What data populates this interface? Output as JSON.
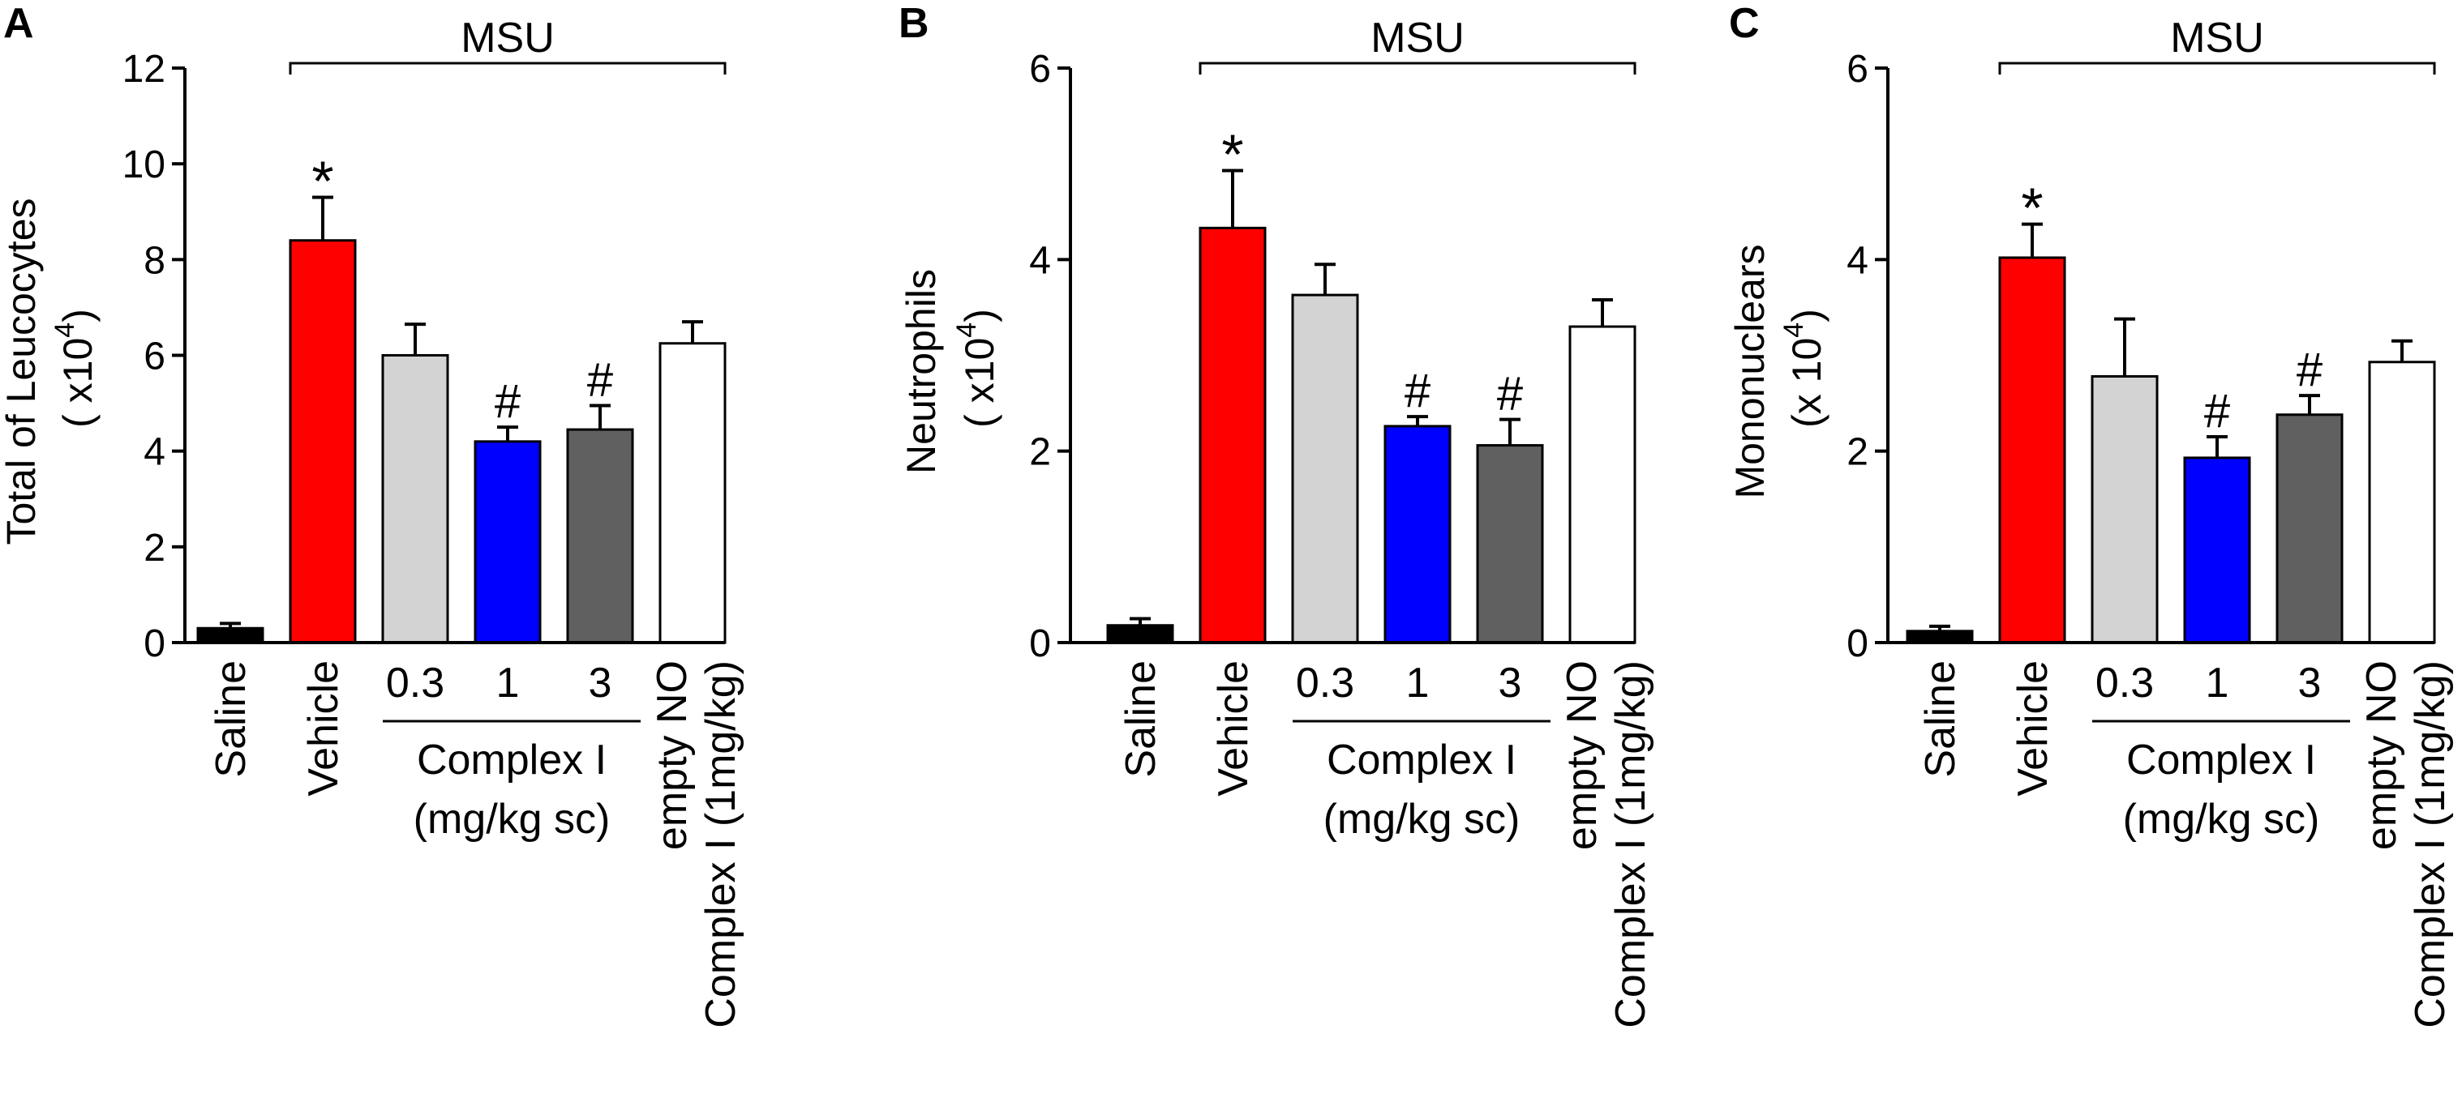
{
  "colors": {
    "saline": "#000000",
    "vehicle": "#ff0000",
    "dose_0_3": "#d3d3d3",
    "dose_1": "#0000ff",
    "dose_3": "#606060",
    "empty_no": "#ffffff"
  },
  "chart_data": [
    {
      "type": "bar",
      "panel": "A",
      "ylabel_line1": "Total of Leucocytes",
      "ylabel_line2": "( x10",
      "ylabel_sup": "4",
      "ylabel_close": ")",
      "ylim": [
        0,
        12
      ],
      "yticks": [
        "0",
        "2",
        "4",
        "6",
        "8",
        "10",
        "12"
      ],
      "categories": [
        "Saline",
        "Vehicle",
        "0.3",
        "1",
        "3",
        "empty NO Complex I (1mg/kg)"
      ],
      "values": [
        0.3,
        8.4,
        6.0,
        4.2,
        4.45,
        6.25
      ],
      "errors": [
        0.1,
        0.9,
        0.65,
        0.3,
        0.5,
        0.45
      ],
      "annotations": [
        "",
        "*",
        "",
        "#",
        "#",
        ""
      ],
      "bracket_label": "MSU",
      "group_label_line1": "Complex I",
      "group_label_line2": "(mg/kg sc)",
      "last_label_line1": "empty NO",
      "last_label_line2": "Complex I (1mg/kg)"
    },
    {
      "type": "bar",
      "panel": "B",
      "ylabel_line1": "Neutrophils",
      "ylabel_line2": "( x10",
      "ylabel_sup": "4",
      "ylabel_close": ")",
      "ylim": [
        0,
        6
      ],
      "yticks": [
        "0",
        "2",
        "4",
        "6"
      ],
      "categories": [
        "Saline",
        "Vehicle",
        "0.3",
        "1",
        "3",
        "empty NO Complex I (1mg/kg)"
      ],
      "values": [
        0.18,
        4.33,
        3.63,
        2.26,
        2.06,
        3.3
      ],
      "errors": [
        0.07,
        0.6,
        0.32,
        0.1,
        0.27,
        0.28
      ],
      "annotations": [
        "",
        "*",
        "",
        "#",
        "#",
        ""
      ],
      "bracket_label": "MSU",
      "group_label_line1": "Complex I",
      "group_label_line2": "(mg/kg sc)",
      "last_label_line1": "empty NO",
      "last_label_line2": "Complex I (1mg/kg)"
    },
    {
      "type": "bar",
      "panel": "C",
      "ylabel_line1": "Mononuclears",
      "ylabel_line2": "(x 10",
      "ylabel_sup": "4",
      "ylabel_close": ")",
      "ylim": [
        0,
        6
      ],
      "yticks": [
        "0",
        "2",
        "4",
        "6"
      ],
      "categories": [
        "Saline",
        "Vehicle",
        "0.3",
        "1",
        "3",
        "empty NO Complex I (1mg/kg)"
      ],
      "values": [
        0.12,
        4.02,
        2.78,
        1.93,
        2.38,
        2.93
      ],
      "errors": [
        0.05,
        0.35,
        0.6,
        0.22,
        0.2,
        0.22
      ],
      "annotations": [
        "",
        "*",
        "",
        "#",
        "#",
        ""
      ],
      "bracket_label": "MSU",
      "group_label_line1": "Complex I",
      "group_label_line2": "(mg/kg sc)",
      "last_label_line1": "empty NO",
      "last_label_line2": "Complex I (1mg/kg)"
    }
  ]
}
